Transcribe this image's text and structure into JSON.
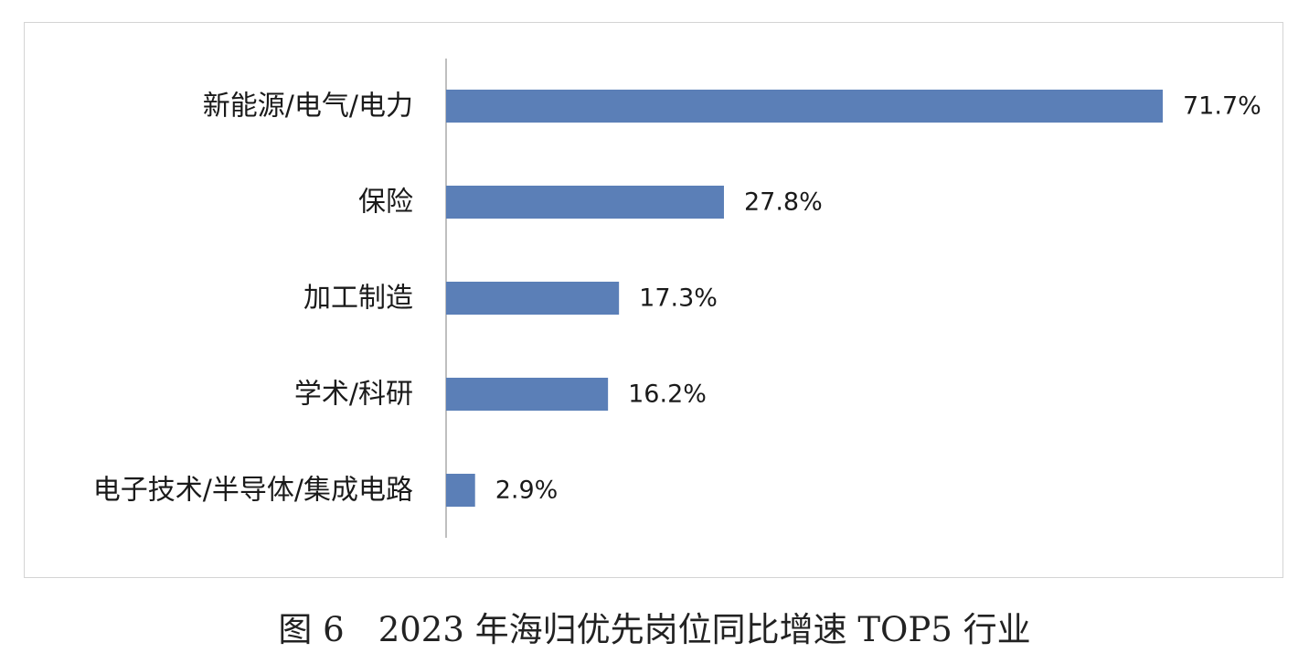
{
  "chart_data": {
    "type": "bar",
    "orientation": "horizontal",
    "categories": [
      "新能源/电气/电力",
      "保险",
      "加工制造",
      "学术/科研",
      "电子技术/半导体/集成电路"
    ],
    "values": [
      71.7,
      27.8,
      17.3,
      16.2,
      2.9
    ],
    "value_labels": [
      "71.7%",
      "27.8%",
      "17.3%",
      "16.2%",
      "2.9%"
    ],
    "unit": "%",
    "xlim": [
      0,
      71.7
    ],
    "grid": false,
    "legend": "none",
    "bar_color": "#5b7fb7"
  },
  "caption": "图 6　2023 年海归优先岗位同比增速 TOP5 行业"
}
